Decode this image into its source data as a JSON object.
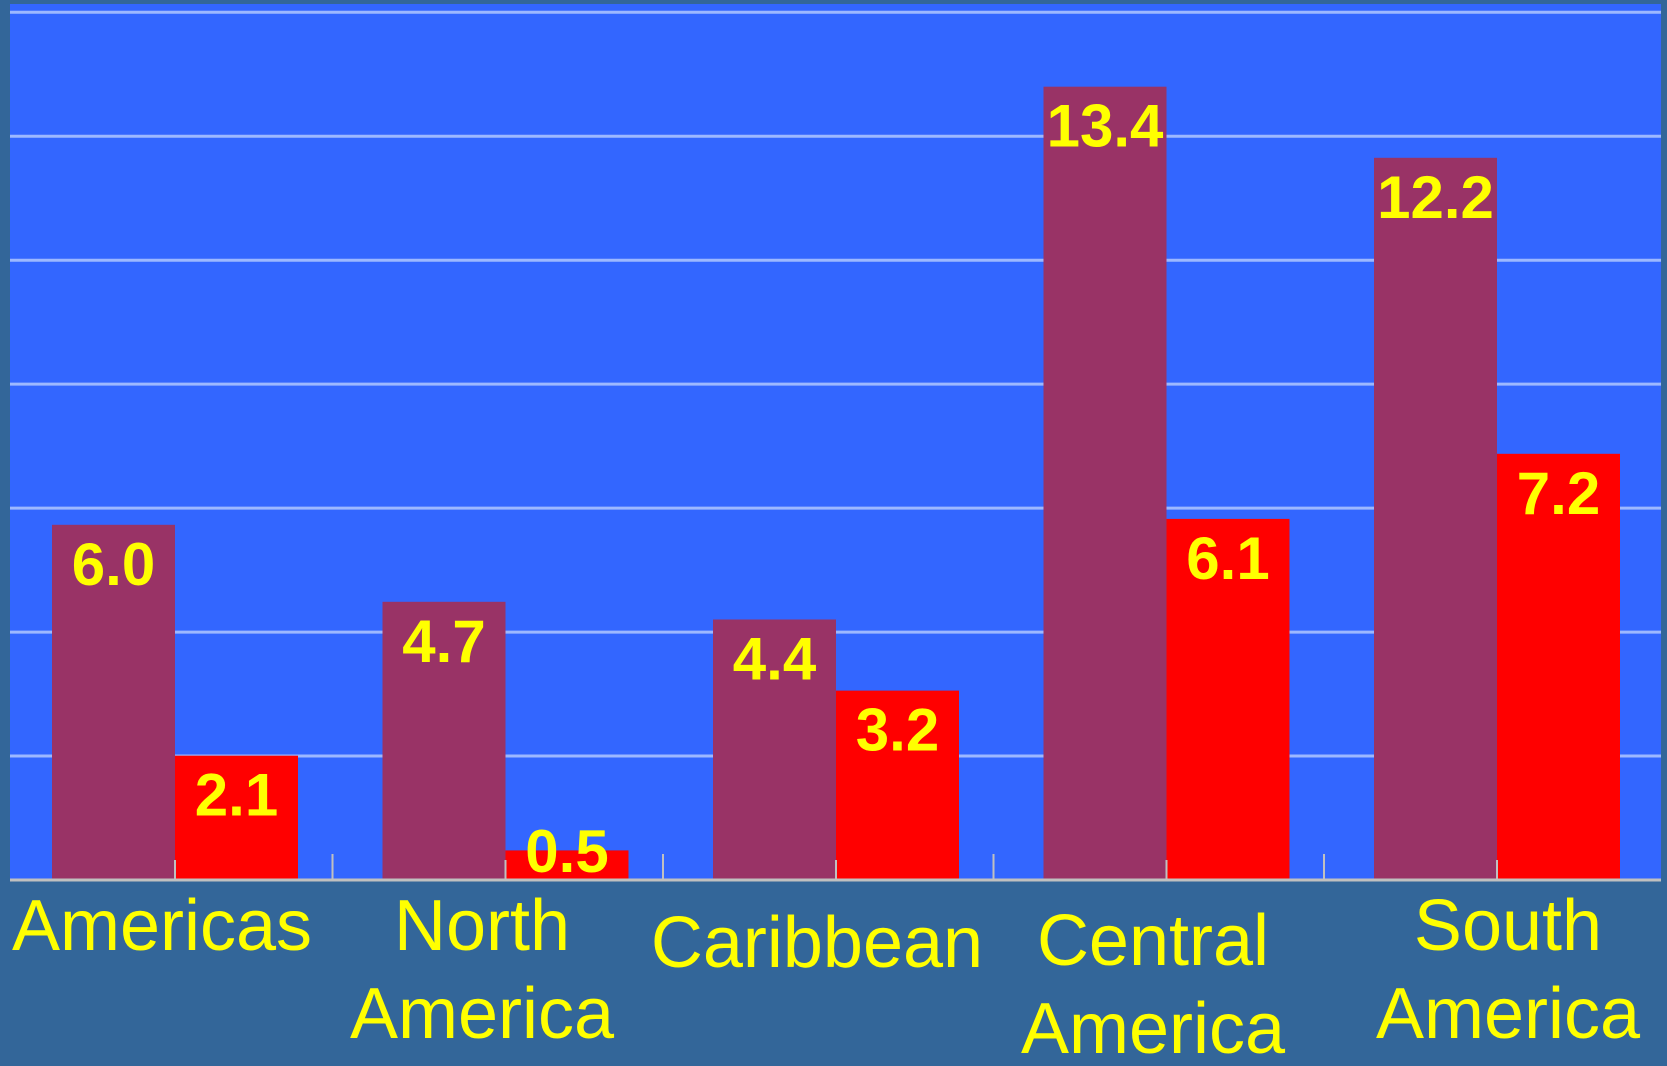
{
  "colors": {
    "background": "#336699",
    "plot_area": "#3366FF",
    "gridline": "#9DB8FF",
    "series_1": "#993366",
    "series_2": "#FF0000",
    "label_text": "#FFFF00",
    "axis_line": "#C0C0C0"
  },
  "chart_data": {
    "type": "bar",
    "title": "",
    "xlabel": "",
    "ylabel": "",
    "ylim": [
      0,
      14
    ],
    "grid": true,
    "legend": "none",
    "categories": [
      [
        "Americas"
      ],
      [
        "North",
        "America"
      ],
      [
        "Caribbean"
      ],
      [
        "Central",
        "America"
      ],
      [
        "South",
        "America"
      ]
    ],
    "series": [
      {
        "values": [
          6.0,
          4.7,
          4.4,
          13.4,
          12.2
        ],
        "labels": [
          "6.0",
          "4.7",
          "4.4",
          "13.4",
          "12.2"
        ]
      },
      {
        "values": [
          2.1,
          0.5,
          3.2,
          6.1,
          7.2
        ],
        "labels": [
          "2.1",
          "0.5",
          "3.2",
          "6.1",
          "7.2"
        ]
      }
    ]
  }
}
